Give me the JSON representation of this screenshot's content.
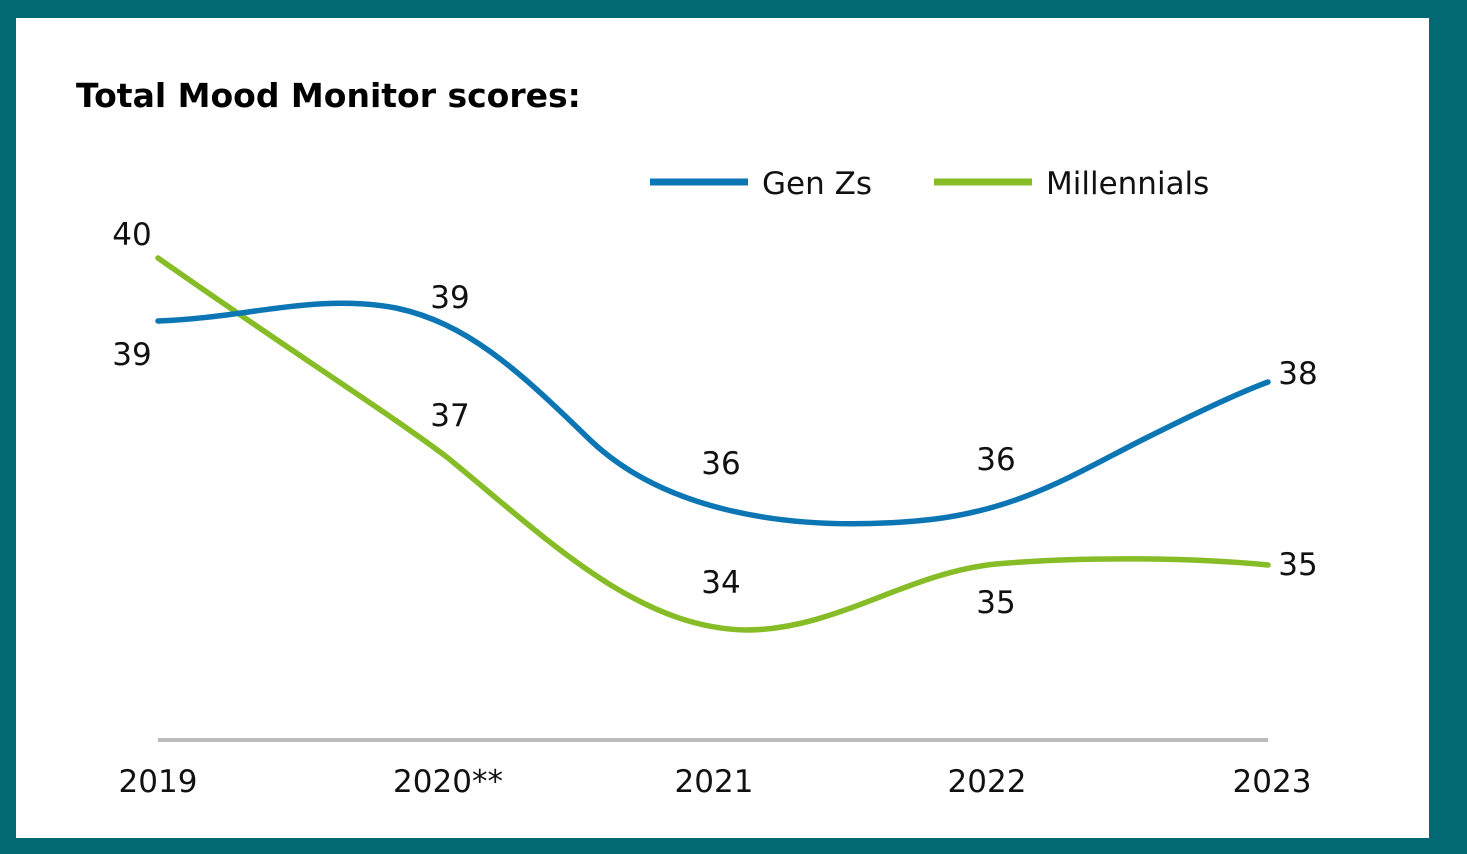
{
  "chart_data": {
    "type": "line",
    "title": "Total Mood Monitor scores:",
    "categories": [
      "2019",
      "2020**",
      "2021",
      "2022",
      "2023"
    ],
    "series": [
      {
        "name": "Gen Zs",
        "color": "#0b76b3",
        "values": [
          39,
          39,
          36,
          36,
          38
        ]
      },
      {
        "name": "Millennials",
        "color": "#86bc25",
        "values": [
          40,
          37,
          34,
          35,
          35
        ]
      }
    ],
    "legend_position": "top-right",
    "grid": false,
    "axis_line_color": "#bcbcbc",
    "frame_color": "#036a73"
  }
}
